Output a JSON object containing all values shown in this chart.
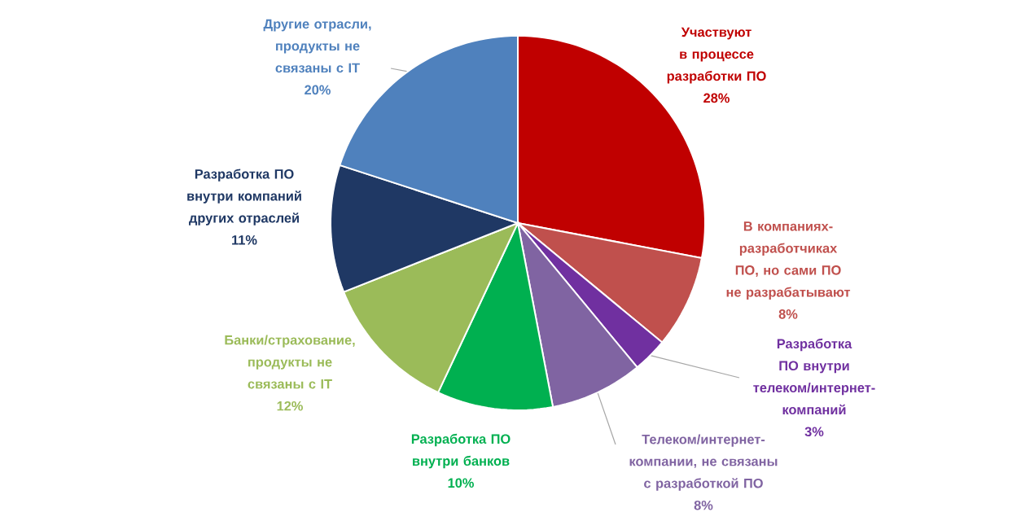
{
  "chart_data": {
    "type": "pie",
    "categories": [
      "Участвуют в процессе разработки ПО",
      "В компаниях-разработчиках ПО, но сами ПО не разрабатывают",
      "Разработка ПО внутри телеком/интернет-компаний",
      "Телеком/интернет-компании, не связаны с разработкой ПО",
      "Разработка ПО внутри банков",
      "Банки/страхование, продукты не связаны с IT",
      "Разработка ПО внутри компаний других отраслей",
      "Другие отрасли, продукты не связаны с IT"
    ],
    "values": [
      28,
      8,
      3,
      8,
      10,
      12,
      11,
      20
    ],
    "value_labels": [
      "28%",
      "8%",
      "3%",
      "8%",
      "10%",
      "12%",
      "11%",
      "20%"
    ],
    "colors": [
      "#c00000",
      "#c0504d",
      "#7030a0",
      "#8064a2",
      "#00b050",
      "#9bbb59",
      "#1f3864",
      "#4f81bd"
    ]
  }
}
